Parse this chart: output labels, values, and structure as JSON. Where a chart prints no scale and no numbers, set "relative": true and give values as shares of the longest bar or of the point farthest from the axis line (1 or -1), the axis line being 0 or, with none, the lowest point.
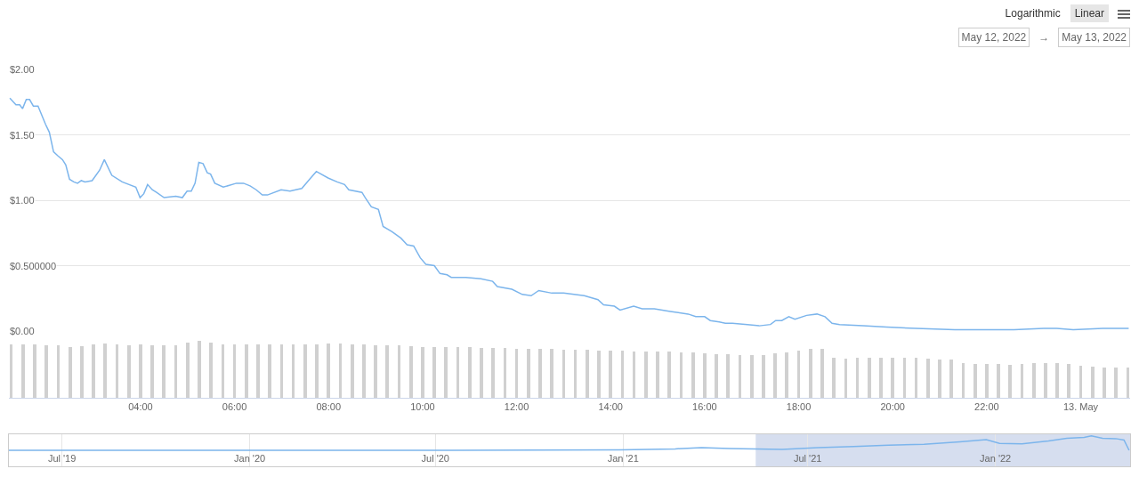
{
  "chart_data": [
    {
      "type": "line",
      "color": "#7cb5ec",
      "xlim": [
        1.2,
        25.05
      ],
      "ylim": [
        0,
        2
      ],
      "grid": "y",
      "tick_labels": "y",
      "yticks": [
        {
          "value": 0,
          "label": "$0.00"
        },
        {
          "value": 0.5,
          "label": "$0.500000"
        },
        {
          "value": 1,
          "label": "$1.00"
        },
        {
          "value": 1.5,
          "label": "$1.50"
        },
        {
          "value": 2,
          "label": "$2.00"
        }
      ],
      "annotations": [
        "Logarithmic",
        "Linear",
        "May 12, 2022",
        "→",
        "May 13, 2022"
      ],
      "x": [
        1.22,
        1.35,
        1.43,
        1.49,
        1.57,
        1.64,
        1.72,
        1.82,
        1.98,
        2.06,
        2.15,
        2.24,
        2.34,
        2.41,
        2.49,
        2.58,
        2.66,
        2.74,
        2.82,
        2.97,
        3.13,
        3.23,
        3.39,
        3.61,
        3.9,
        3.99,
        4.07,
        4.15,
        4.25,
        4.34,
        4.5,
        4.75,
        4.89,
        4.99,
        5.08,
        5.16,
        5.24,
        5.33,
        5.42,
        5.49,
        5.58,
        5.76,
        6.04,
        6.19,
        6.33,
        6.46,
        6.59,
        6.7,
        6.99,
        7.18,
        7.3,
        7.43,
        7.62,
        7.74,
        7.99,
        8.18,
        8.34,
        8.43,
        8.71,
        8.78,
        8.91,
        9.06,
        9.16,
        9.35,
        9.54,
        9.67,
        9.81,
        9.95,
        10.07,
        10.25,
        10.37,
        10.52,
        10.61,
        10.92,
        11.24,
        11.49,
        11.59,
        11.9,
        12.12,
        12.31,
        12.47,
        12.75,
        13.0,
        13.44,
        13.73,
        13.85,
        14.08,
        14.2,
        14.49,
        14.67,
        14.93,
        15.27,
        15.65,
        15.81,
        16.0,
        16.12,
        16.31,
        16.44,
        16.59,
        16.91,
        17.16,
        17.4,
        17.51,
        17.64,
        17.79,
        17.92,
        18.17,
        18.39,
        18.56,
        18.71,
        18.87,
        19.37,
        19.87,
        20.5,
        21.32,
        21.95,
        22.58,
        23.21,
        23.49,
        23.84,
        24.47,
        25.02
      ],
      "values": [
        1.78,
        1.73,
        1.73,
        1.7,
        1.77,
        1.77,
        1.72,
        1.72,
        1.58,
        1.52,
        1.37,
        1.34,
        1.31,
        1.27,
        1.16,
        1.14,
        1.13,
        1.15,
        1.14,
        1.15,
        1.23,
        1.31,
        1.19,
        1.14,
        1.1,
        1.02,
        1.05,
        1.12,
        1.08,
        1.06,
        1.02,
        1.03,
        1.02,
        1.07,
        1.07,
        1.13,
        1.29,
        1.28,
        1.21,
        1.2,
        1.13,
        1.1,
        1.13,
        1.13,
        1.11,
        1.08,
        1.04,
        1.04,
        1.08,
        1.07,
        1.08,
        1.09,
        1.17,
        1.22,
        1.17,
        1.14,
        1.12,
        1.08,
        1.06,
        1.02,
        0.95,
        0.93,
        0.8,
        0.76,
        0.71,
        0.66,
        0.65,
        0.56,
        0.51,
        0.5,
        0.44,
        0.43,
        0.41,
        0.41,
        0.4,
        0.38,
        0.34,
        0.32,
        0.28,
        0.27,
        0.31,
        0.29,
        0.29,
        0.27,
        0.24,
        0.2,
        0.19,
        0.16,
        0.19,
        0.17,
        0.17,
        0.15,
        0.13,
        0.11,
        0.11,
        0.08,
        0.07,
        0.06,
        0.06,
        0.05,
        0.04,
        0.05,
        0.08,
        0.08,
        0.11,
        0.09,
        0.12,
        0.13,
        0.11,
        0.06,
        0.05,
        0.04,
        0.03,
        0.02,
        0.01,
        0.01,
        0.01,
        0.02,
        0.02,
        0.01,
        0.02,
        0.02
      ]
    },
    {
      "type": "bar",
      "color": "#d0d0d0",
      "relative": true,
      "xlim": [
        1.2,
        25.05
      ],
      "xticks": [
        {
          "value": 4,
          "label": "04:00"
        },
        {
          "value": 6,
          "label": "06:00"
        },
        {
          "value": 8,
          "label": "08:00"
        },
        {
          "value": 10,
          "label": "10:00"
        },
        {
          "value": 12,
          "label": "12:00"
        },
        {
          "value": 14,
          "label": "14:00"
        },
        {
          "value": 16,
          "label": "16:00"
        },
        {
          "value": 18,
          "label": "18:00"
        },
        {
          "value": 20,
          "label": "20:00"
        },
        {
          "value": 22,
          "label": "22:00"
        },
        {
          "value": 24,
          "label": "13. May"
        }
      ],
      "x": [
        1.25,
        1.5,
        1.75,
        2.0,
        2.25,
        2.5,
        2.75,
        3.0,
        3.25,
        3.5,
        3.75,
        4.0,
        4.25,
        4.5,
        4.75,
        5.0,
        5.25,
        5.5,
        5.75,
        6.0,
        6.25,
        6.5,
        6.75,
        7.0,
        7.25,
        7.5,
        7.75,
        8.0,
        8.25,
        8.5,
        8.75,
        9.0,
        9.25,
        9.5,
        9.75,
        10.0,
        10.25,
        10.5,
        10.75,
        11.0,
        11.25,
        11.5,
        11.75,
        12.0,
        12.25,
        12.5,
        12.75,
        13.0,
        13.25,
        13.5,
        13.75,
        14.0,
        14.25,
        14.5,
        14.75,
        15.0,
        15.25,
        15.5,
        15.75,
        16.0,
        16.25,
        16.5,
        16.75,
        17.0,
        17.25,
        17.5,
        17.75,
        18.0,
        18.25,
        18.5,
        18.75,
        19.0,
        19.25,
        19.5,
        19.75,
        20.0,
        20.25,
        20.5,
        20.75,
        21.0,
        21.25,
        21.5,
        21.75,
        22.0,
        22.25,
        22.5,
        22.75,
        23.0,
        23.25,
        23.5,
        23.75,
        24.0,
        24.25,
        24.5,
        24.75,
        25.0
      ],
      "values": [
        0.95,
        0.95,
        0.94,
        0.93,
        0.92,
        0.9,
        0.91,
        0.95,
        0.96,
        0.94,
        0.93,
        0.94,
        0.93,
        0.92,
        0.93,
        0.97,
        1,
        0.97,
        0.95,
        0.95,
        0.95,
        0.94,
        0.95,
        0.94,
        0.94,
        0.95,
        0.95,
        0.96,
        0.96,
        0.95,
        0.94,
        0.93,
        0.92,
        0.92,
        0.91,
        0.9,
        0.9,
        0.89,
        0.89,
        0.89,
        0.88,
        0.88,
        0.88,
        0.87,
        0.87,
        0.86,
        0.86,
        0.85,
        0.85,
        0.85,
        0.84,
        0.83,
        0.83,
        0.82,
        0.82,
        0.81,
        0.81,
        0.8,
        0.8,
        0.78,
        0.77,
        0.77,
        0.76,
        0.76,
        0.76,
        0.78,
        0.8,
        0.84,
        0.86,
        0.87,
        0.7,
        0.69,
        0.7,
        0.7,
        0.71,
        0.71,
        0.71,
        0.7,
        0.69,
        0.68,
        0.67,
        0.62,
        0.6,
        0.59,
        0.59,
        0.58,
        0.59,
        0.61,
        0.62,
        0.61,
        0.6,
        0.56,
        0.55,
        0.54,
        0.54,
        0.54
      ]
    },
    {
      "type": "line",
      "color": "#7cb5ec",
      "relative": true,
      "grid": "x",
      "xlim": [
        "2019-05-10",
        "2022-05-13"
      ],
      "xticks": [
        {
          "value": "2019-07-01",
          "label": "Jul '19"
        },
        {
          "value": "2020-01-01",
          "label": "Jan '20"
        },
        {
          "value": "2020-07-01",
          "label": "Jul '20"
        },
        {
          "value": "2021-01-01",
          "label": "Jan '21"
        },
        {
          "value": "2021-07-01",
          "label": "Jul '21"
        },
        {
          "value": "2022-01-01",
          "label": "Jan '22"
        }
      ],
      "bands": [
        {
          "axis": "x",
          "from": "2021-05-11",
          "to": "2022-05-13",
          "color": "#ccd6eb"
        }
      ],
      "x": [
        "2019-05-10",
        "2020-01-01",
        "2020-07-01",
        "2020-12-30",
        "2021-02-21",
        "2021-03-19",
        "2021-04-15",
        "2021-05-11",
        "2021-06-06",
        "2021-07-11",
        "2021-08-15",
        "2021-09-18",
        "2021-10-23",
        "2021-11-27",
        "2021-12-23",
        "2022-01-05",
        "2022-01-27",
        "2022-02-22",
        "2022-03-12",
        "2022-03-29",
        "2022-04-05",
        "2022-04-16",
        "2022-04-29",
        "2022-05-07",
        "2022-05-12"
      ],
      "values": [
        0,
        0,
        0,
        0.03,
        0.1,
        0.19,
        0.13,
        0.1,
        0.06,
        0.19,
        0.26,
        0.35,
        0.42,
        0.58,
        0.74,
        0.48,
        0.45,
        0.65,
        0.84,
        0.9,
        1,
        0.84,
        0.81,
        0.71,
        0
      ]
    }
  ]
}
